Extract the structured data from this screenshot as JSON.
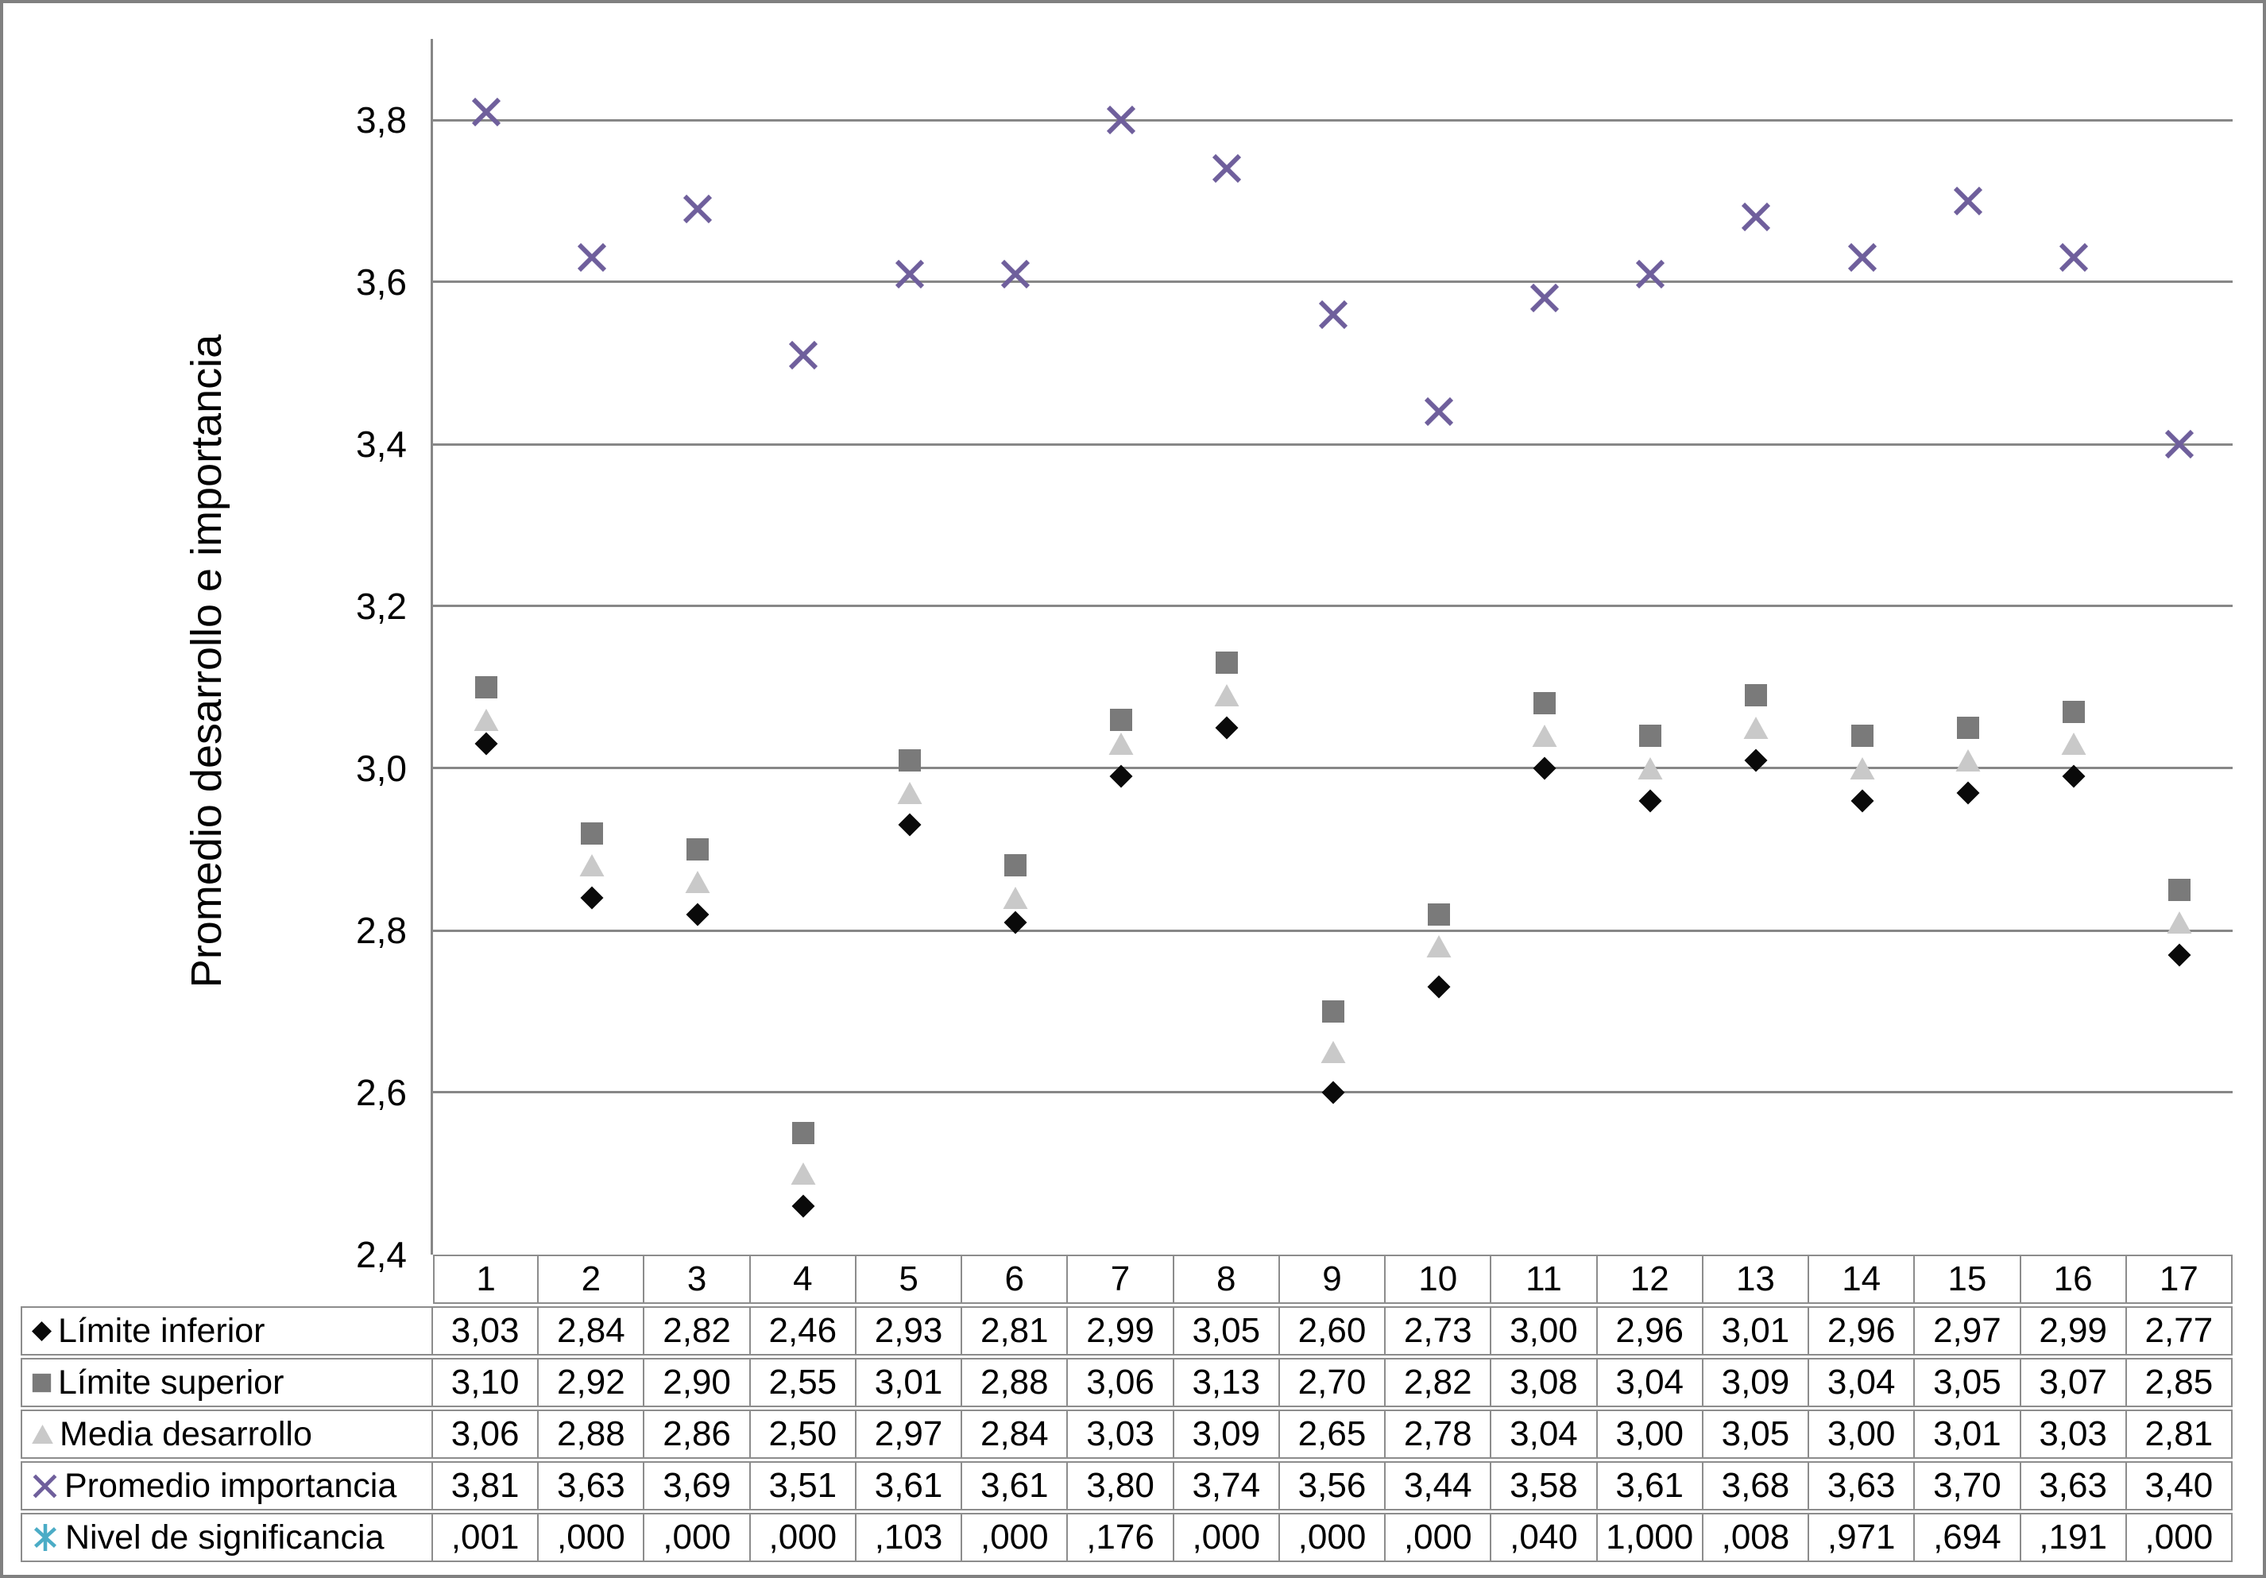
{
  "chart_data": {
    "type": "scatter",
    "title": "",
    "xlabel": "",
    "ylabel": "Promedio desarrollo e importancia",
    "ylim": [
      2.4,
      3.9
    ],
    "grid": true,
    "legend_position": "left column of data table below plot",
    "y_tick_labels": [
      "3,8",
      "3,6",
      "3,4",
      "3,2",
      "3,0",
      "2,8",
      "2,6",
      "2,4"
    ],
    "categories": [
      "1",
      "2",
      "3",
      "4",
      "5",
      "6",
      "7",
      "8",
      "9",
      "10",
      "11",
      "12",
      "13",
      "14",
      "15",
      "16",
      "17"
    ],
    "series": [
      {
        "name": "Límite inferior",
        "marker": "diamond",
        "color": "#0a0a0a",
        "values": [
          3.03,
          2.84,
          2.82,
          2.46,
          2.93,
          2.81,
          2.99,
          3.05,
          2.6,
          2.73,
          3.0,
          2.96,
          3.01,
          2.96,
          2.97,
          2.99,
          2.77
        ],
        "display": [
          "3,03",
          "2,84",
          "2,82",
          "2,46",
          "2,93",
          "2,81",
          "2,99",
          "3,05",
          "2,60",
          "2,73",
          "3,00",
          "2,96",
          "3,01",
          "2,96",
          "2,97",
          "2,99",
          "2,77"
        ]
      },
      {
        "name": "Límite superior",
        "marker": "square",
        "color": "#7a7a7a",
        "values": [
          3.1,
          2.92,
          2.9,
          2.55,
          3.01,
          2.88,
          3.06,
          3.13,
          2.7,
          2.82,
          3.08,
          3.04,
          3.09,
          3.04,
          3.05,
          3.07,
          2.85
        ],
        "display": [
          "3,10",
          "2,92",
          "2,90",
          "2,55",
          "3,01",
          "2,88",
          "3,06",
          "3,13",
          "2,70",
          "2,82",
          "3,08",
          "3,04",
          "3,09",
          "3,04",
          "3,05",
          "3,07",
          "2,85"
        ]
      },
      {
        "name": "Media desarrollo",
        "marker": "triangle",
        "color": "#c9c9c9",
        "values": [
          3.06,
          2.88,
          2.86,
          2.5,
          2.97,
          2.84,
          3.03,
          3.09,
          2.65,
          2.78,
          3.04,
          3.0,
          3.05,
          3.0,
          3.01,
          3.03,
          2.81
        ],
        "display": [
          "3,06",
          "2,88",
          "2,86",
          "2,50",
          "2,97",
          "2,84",
          "3,03",
          "3,09",
          "2,65",
          "2,78",
          "3,04",
          "3,00",
          "3,05",
          "3,00",
          "3,01",
          "3,03",
          "2,81"
        ]
      },
      {
        "name": "Promedio importancia",
        "marker": "x",
        "color": "#6f5f9c",
        "values": [
          3.81,
          3.63,
          3.69,
          3.51,
          3.61,
          3.61,
          3.8,
          3.74,
          3.56,
          3.44,
          3.58,
          3.61,
          3.68,
          3.63,
          3.7,
          3.63,
          3.4
        ],
        "display": [
          "3,81",
          "3,63",
          "3,69",
          "3,51",
          "3,61",
          "3,61",
          "3,80",
          "3,74",
          "3,56",
          "3,44",
          "3,58",
          "3,61",
          "3,68",
          "3,63",
          "3,70",
          "3,63",
          "3,40"
        ]
      },
      {
        "name": "Nivel de significancia",
        "marker": "star",
        "color": "#4bacc6",
        "values": [
          0.001,
          0.0,
          0.0,
          0.0,
          0.103,
          0.0,
          0.176,
          0.0,
          0.0,
          0.0,
          0.04,
          1.0,
          0.008,
          0.971,
          0.694,
          0.191,
          0.0
        ],
        "display": [
          ",001",
          ",000",
          ",000",
          ",000",
          ",103",
          ",000",
          ",176",
          ",000",
          ",000",
          ",000",
          ",040",
          "1,000",
          ",008",
          ",971",
          ",694",
          ",191",
          ",000"
        ]
      }
    ]
  },
  "colors": {
    "gridline": "#878787",
    "axis": "#878787",
    "table_border": "#8c8c8c",
    "frame": "#808080",
    "background": "#ffffff"
  }
}
